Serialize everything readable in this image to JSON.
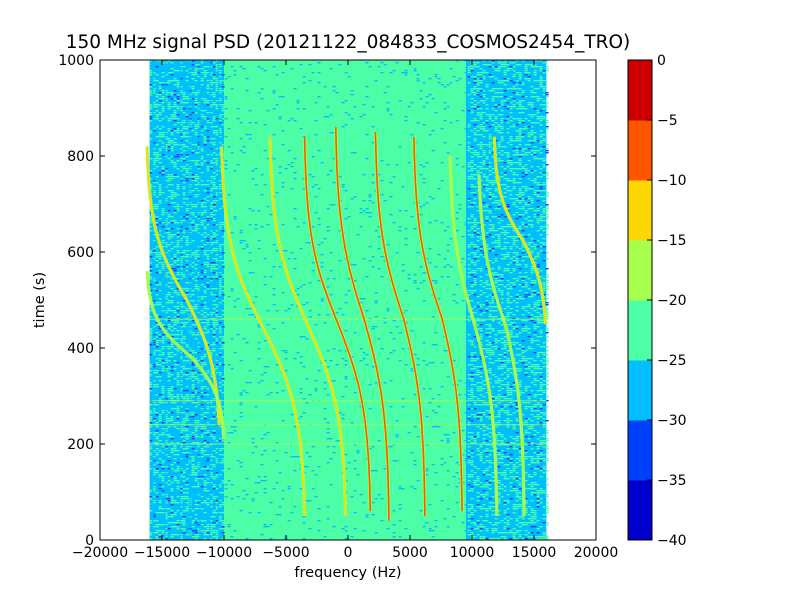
{
  "chart_data": {
    "type": "heatmap",
    "title": "150 MHz signal PSD (20121122_084833_COSMOS2454_TRO)",
    "xlabel": "frequency (Hz)",
    "ylabel": "time (s)",
    "xlim": [
      -20000,
      20000
    ],
    "ylim": [
      0,
      1000
    ],
    "x_ticks": [
      -20000,
      -15000,
      -10000,
      -5000,
      0,
      5000,
      10000,
      15000,
      20000
    ],
    "y_ticks": [
      0,
      200,
      400,
      600,
      800,
      1000
    ],
    "data_extent": {
      "x": [
        -16000,
        16000
      ],
      "y": [
        0,
        1000
      ]
    },
    "background_bands": [
      {
        "x": [
          -16000,
          -10000
        ],
        "level_db": -27
      },
      {
        "x": [
          -10000,
          9500
        ],
        "level_db": -22
      },
      {
        "x": [
          9500,
          16000
        ],
        "level_db": -28
      }
    ],
    "horizontal_lines": [
      {
        "t": 200,
        "level_db": -18
      },
      {
        "t": 240,
        "level_db": -18
      },
      {
        "t": 290,
        "level_db": -20
      },
      {
        "t": 460,
        "level_db": -20
      }
    ],
    "traces": [
      {
        "t_start": 820,
        "t_end": 240,
        "f_top": -16200,
        "f_mid": -13000,
        "f_bottom": -10300,
        "t_center": 500,
        "level_db": -15
      },
      {
        "t_start": 560,
        "t_end": 210,
        "f_top": -16200,
        "f_mid": -12600,
        "f_bottom": -10000,
        "t_center": 380,
        "level_db": -18
      },
      {
        "t_start": 820,
        "t_end": 50,
        "f_top": -10200,
        "f_mid": -6800,
        "f_bottom": -3500,
        "t_center": 440,
        "level_db": -15
      },
      {
        "t_start": 840,
        "t_end": 50,
        "f_top": -6300,
        "f_mid": -3300,
        "f_bottom": -200,
        "t_center": 450,
        "level_db": -15
      },
      {
        "t_start": 840,
        "t_end": 60,
        "f_top": -3500,
        "f_mid": -800,
        "f_bottom": 1800,
        "t_center": 450,
        "level_db": -8
      },
      {
        "t_start": 860,
        "t_end": 40,
        "f_top": -1000,
        "f_mid": 1300,
        "f_bottom": 3300,
        "t_center": 460,
        "level_db": -6
      },
      {
        "t_start": 850,
        "t_end": 50,
        "f_top": 2200,
        "f_mid": 4500,
        "f_bottom": 6200,
        "t_center": 460,
        "level_db": -6
      },
      {
        "t_start": 840,
        "t_end": 60,
        "f_top": 5300,
        "f_mid": 7600,
        "f_bottom": 9200,
        "t_center": 460,
        "level_db": -8
      },
      {
        "t_start": 800,
        "t_end": 50,
        "f_top": 8200,
        "f_mid": 10200,
        "f_bottom": 12000,
        "t_center": 450,
        "level_db": -16
      },
      {
        "t_start": 760,
        "t_end": 50,
        "f_top": 10500,
        "f_mid": 12800,
        "f_bottom": 14200,
        "t_center": 440,
        "level_db": -17
      },
      {
        "t_start": 840,
        "t_end": 450,
        "f_top": 11800,
        "f_mid": 14200,
        "f_bottom": 16000,
        "t_center": 620,
        "level_db": -15
      }
    ],
    "colorbar": {
      "levels": [
        -40,
        -35,
        -30,
        -25,
        -20,
        -15,
        -10,
        -5,
        0
      ],
      "tick_labels": [
        "0",
        "−5",
        "−10",
        "−15",
        "−20",
        "−25",
        "−30",
        "−35",
        "−40"
      ],
      "colors": [
        "#0000cd",
        "#0040ff",
        "#00bfff",
        "#4cffa6",
        "#a6ff4c",
        "#ffd700",
        "#ff5500",
        "#cc0000"
      ]
    }
  }
}
